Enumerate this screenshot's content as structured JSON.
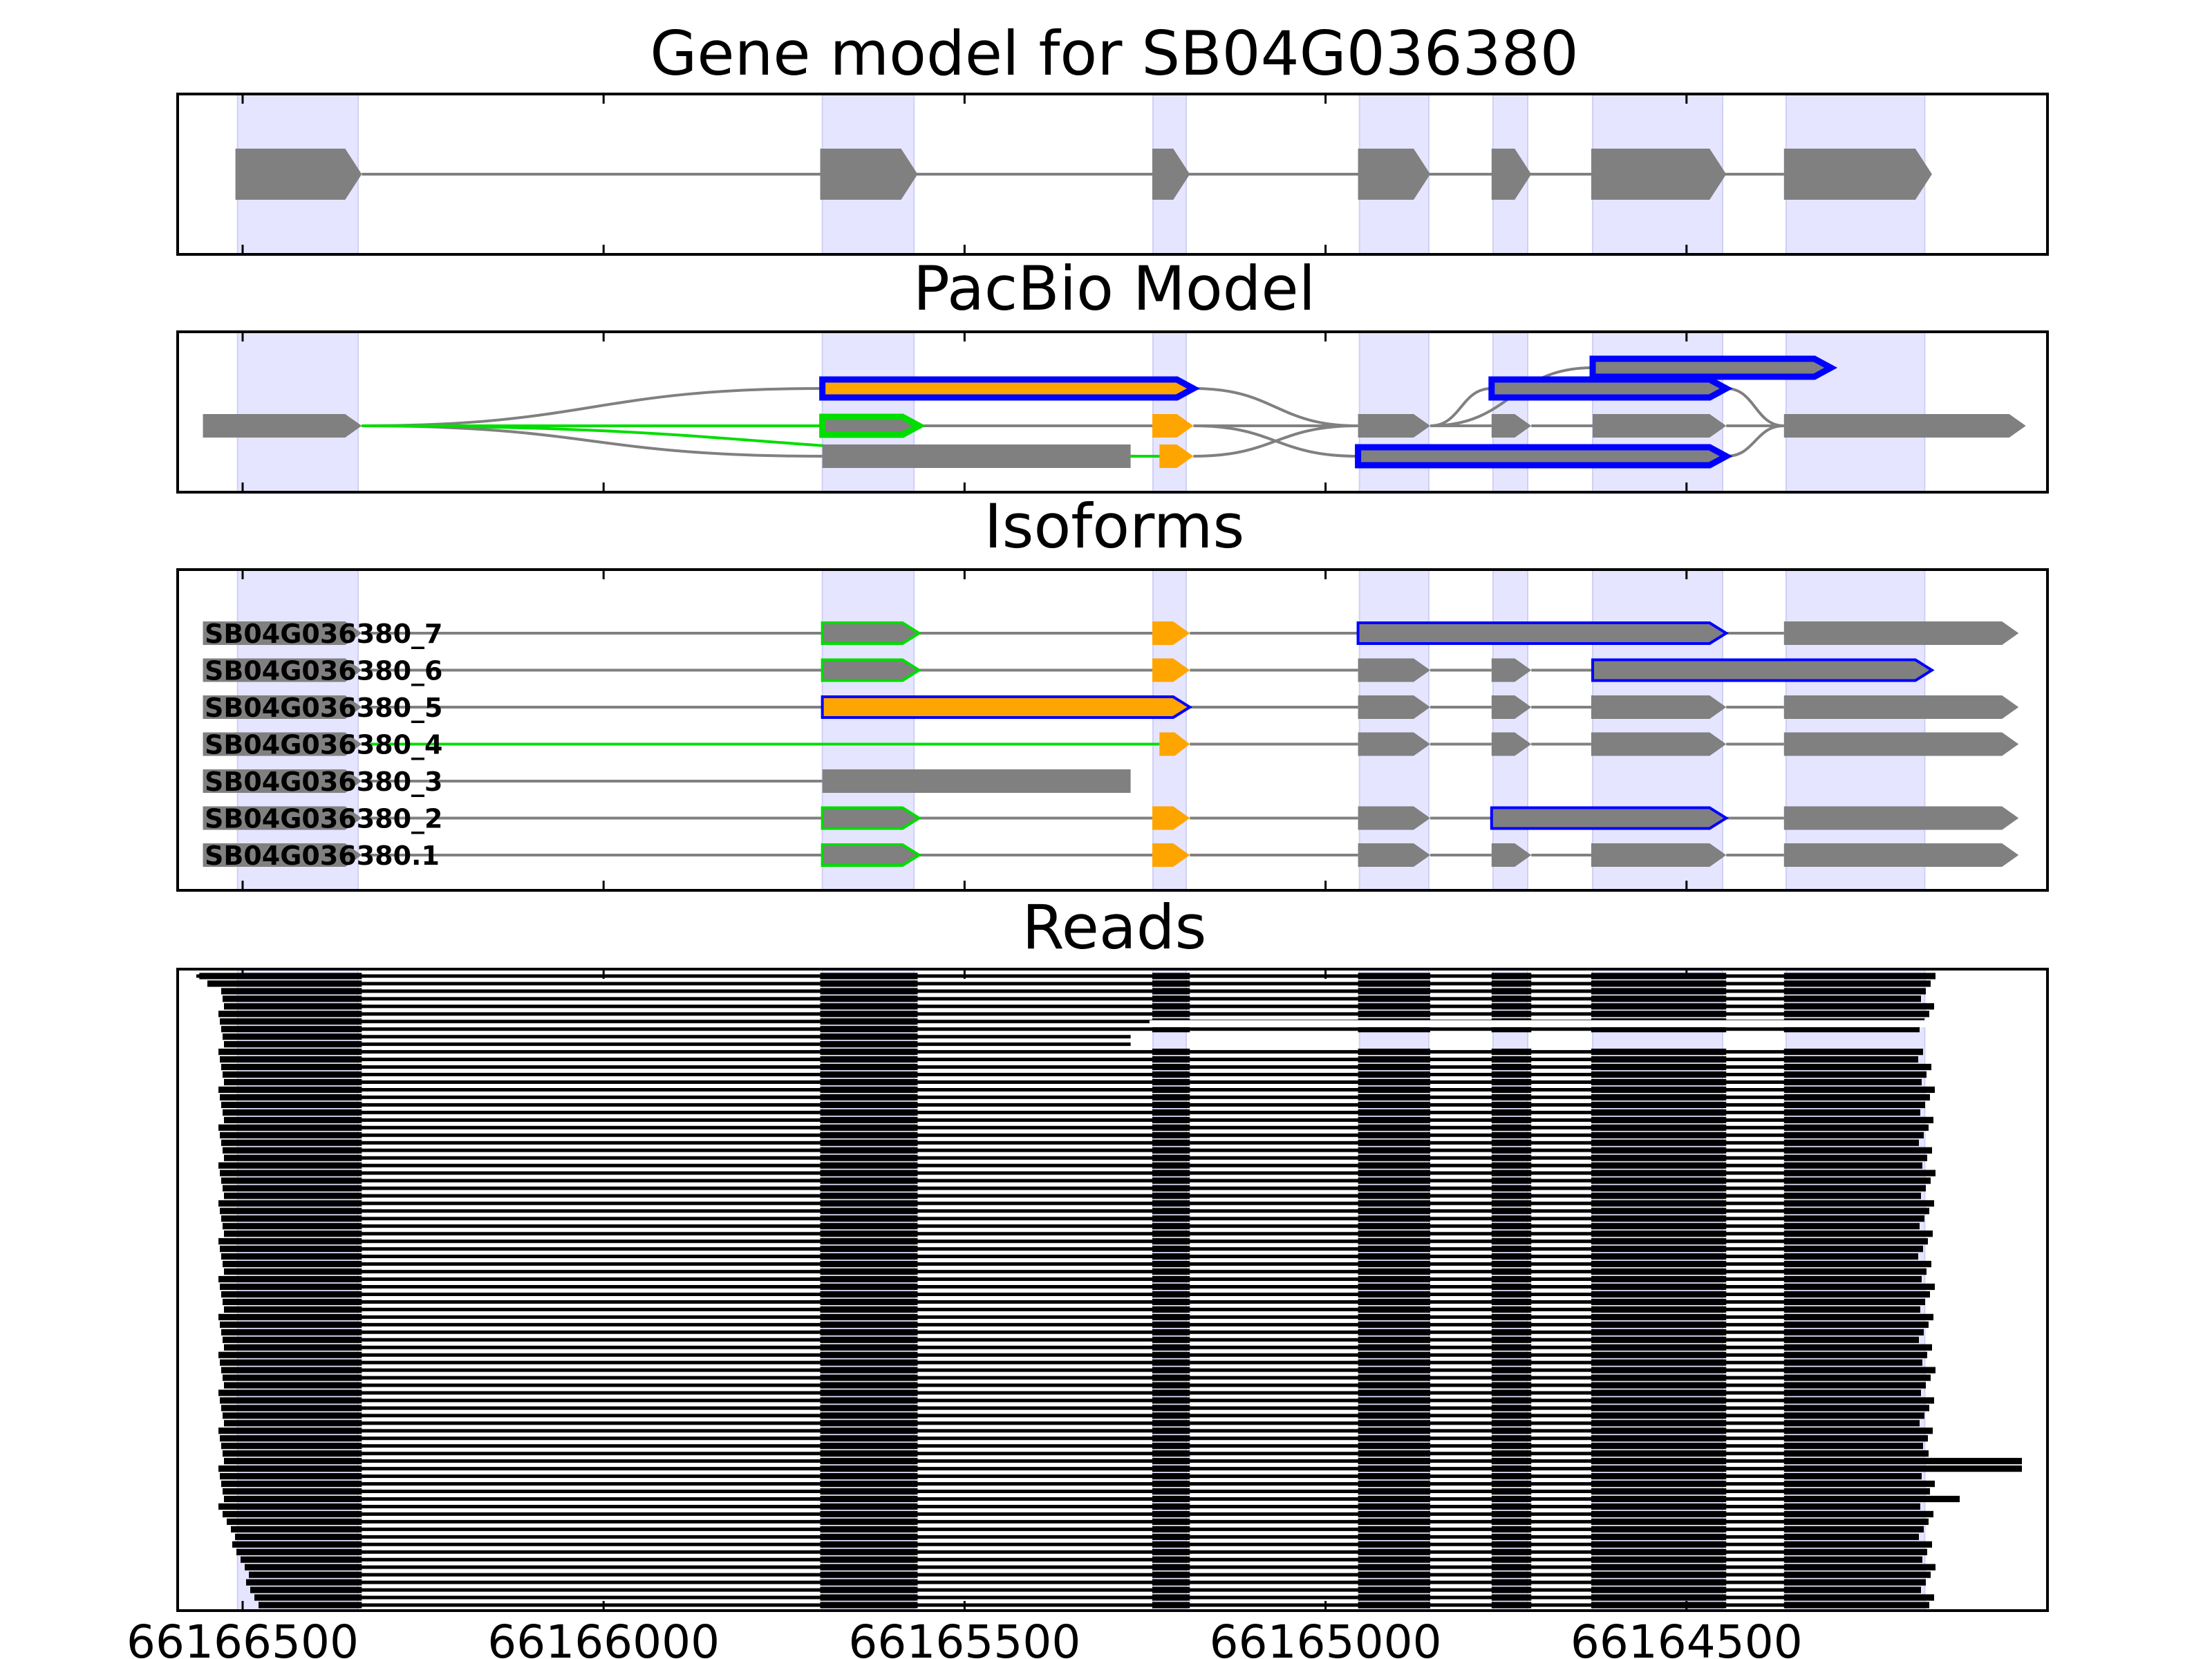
{
  "chart_data": {
    "type": "gene-structure",
    "xlim": [
      66166590,
      66164000
    ],
    "x_ticks": [
      "66166500",
      "66166000",
      "66165500",
      "66165000",
      "66164500"
    ],
    "exon_bands": [
      [
        66166507,
        66166340
      ],
      [
        66165697,
        66165570
      ],
      [
        66165239,
        66165193
      ],
      [
        66164953,
        66164857
      ],
      [
        66164768,
        66164720
      ],
      [
        66164630,
        66164450
      ],
      [
        66164362,
        66164170
      ]
    ],
    "panels": {
      "gene_model": {
        "title": "Gene model for SB04G036380",
        "exons": [
          [
            66166510,
            66166335
          ],
          [
            66165700,
            66165565
          ],
          [
            66165240,
            66165188
          ],
          [
            66164955,
            66164855
          ],
          [
            66164770,
            66164715
          ],
          [
            66164632,
            66164445
          ],
          [
            66164365,
            66164160
          ]
        ]
      },
      "pacbio": {
        "title": "PacBio Model",
        "nodes": [
          {
            "id": "a",
            "s": 66166555,
            "e": 66166335,
            "y": 2,
            "fill": "#808080",
            "stroke": "none"
          },
          {
            "id": "b",
            "s": 66165697,
            "e": 66165183,
            "y": 1,
            "fill": "#FFA500",
            "stroke": "#0000FF"
          },
          {
            "id": "c",
            "s": 66165697,
            "e": 66165563,
            "y": 2,
            "fill": "#808080",
            "stroke": "#00DD00"
          },
          {
            "id": "d",
            "s": 66165697,
            "e": 66165270,
            "y": 3,
            "fill": "#808080",
            "stroke": "none"
          },
          {
            "id": "e",
            "s": 66165240,
            "e": 66165183,
            "y": 2,
            "fill": "#FFA500",
            "stroke": "none"
          },
          {
            "id": "f",
            "s": 66165230,
            "e": 66165183,
            "y": 3,
            "fill": "#FFA500",
            "stroke": "none"
          },
          {
            "id": "g",
            "s": 66164955,
            "e": 66164855,
            "y": 2,
            "fill": "#808080",
            "stroke": "none"
          },
          {
            "id": "h",
            "s": 66164955,
            "e": 66164445,
            "y": 3,
            "fill": "#808080",
            "stroke": "#0000FF"
          },
          {
            "id": "i",
            "s": 66164770,
            "e": 66164445,
            "y": 1,
            "fill": "#808080",
            "stroke": "#0000FF"
          },
          {
            "id": "j",
            "s": 66164770,
            "e": 66164715,
            "y": 2,
            "fill": "#808080",
            "stroke": "none"
          },
          {
            "id": "k",
            "s": 66164630,
            "e": 66164300,
            "y": 0,
            "fill": "#808080",
            "stroke": "#0000FF"
          },
          {
            "id": "l",
            "s": 66164630,
            "e": 66164445,
            "y": 2,
            "fill": "#808080",
            "stroke": "none"
          },
          {
            "id": "m",
            "s": 66164365,
            "e": 66164030,
            "y": 2,
            "fill": "#808080",
            "stroke": "none"
          }
        ],
        "edges": [
          {
            "from": "a",
            "to": "b",
            "color": "#808080"
          },
          {
            "from": "a",
            "to": "c",
            "color": "#00DD00"
          },
          {
            "from": "a",
            "to": "d",
            "color": "#808080"
          },
          {
            "from": "a",
            "to": "f",
            "color": "#00DD00"
          },
          {
            "from": "c",
            "to": "e",
            "color": "#808080"
          },
          {
            "from": "d",
            "to": "f",
            "color": "#00DD00"
          },
          {
            "from": "b",
            "to": "g",
            "color": "#808080"
          },
          {
            "from": "e",
            "to": "g",
            "color": "#808080"
          },
          {
            "from": "e",
            "to": "h",
            "color": "#808080"
          },
          {
            "from": "f",
            "to": "g",
            "color": "#808080"
          },
          {
            "from": "g",
            "to": "i",
            "color": "#808080"
          },
          {
            "from": "g",
            "to": "j",
            "color": "#808080"
          },
          {
            "from": "g",
            "to": "k",
            "color": "#808080"
          },
          {
            "from": "j",
            "to": "l",
            "color": "#808080"
          },
          {
            "from": "l",
            "to": "m",
            "color": "#808080"
          },
          {
            "from": "i",
            "to": "m",
            "color": "#808080"
          },
          {
            "from": "h",
            "to": "m",
            "color": "#808080"
          }
        ]
      },
      "isoforms": {
        "title": "Isoforms",
        "rows": [
          {
            "name": "SB04G036380_7",
            "exons": [
              {
                "s": 66166555,
                "e": 66166335,
                "fill": "#808080",
                "stroke": "none"
              },
              {
                "s": 66165697,
                "e": 66165563,
                "fill": "#808080",
                "stroke": "#00DD00"
              },
              {
                "s": 66165240,
                "e": 66165188,
                "fill": "#FFA500",
                "stroke": "none"
              },
              {
                "s": 66164955,
                "e": 66164445,
                "fill": "#808080",
                "stroke": "#0000FF"
              },
              {
                "s": 66164365,
                "e": 66164040,
                "fill": "#808080",
                "stroke": "none"
              }
            ],
            "intron_color": "#808080"
          },
          {
            "name": "SB04G036380_6",
            "exons": [
              {
                "s": 66166555,
                "e": 66166335,
                "fill": "#808080",
                "stroke": "none"
              },
              {
                "s": 66165697,
                "e": 66165563,
                "fill": "#808080",
                "stroke": "#00DD00"
              },
              {
                "s": 66165240,
                "e": 66165188,
                "fill": "#FFA500",
                "stroke": "none"
              },
              {
                "s": 66164955,
                "e": 66164855,
                "fill": "#808080",
                "stroke": "none"
              },
              {
                "s": 66164770,
                "e": 66164715,
                "fill": "#808080",
                "stroke": "none"
              },
              {
                "s": 66164630,
                "e": 66164160,
                "fill": "#808080",
                "stroke": "#0000FF"
              }
            ],
            "intron_color": "#808080"
          },
          {
            "name": "SB04G036380_5",
            "exons": [
              {
                "s": 66166555,
                "e": 66166335,
                "fill": "#808080",
                "stroke": "none"
              },
              {
                "s": 66165697,
                "e": 66165188,
                "fill": "#FFA500",
                "stroke": "#0000FF"
              },
              {
                "s": 66164955,
                "e": 66164855,
                "fill": "#808080",
                "stroke": "none"
              },
              {
                "s": 66164770,
                "e": 66164715,
                "fill": "#808080",
                "stroke": "none"
              },
              {
                "s": 66164632,
                "e": 66164445,
                "fill": "#808080",
                "stroke": "none"
              },
              {
                "s": 66164365,
                "e": 66164040,
                "fill": "#808080",
                "stroke": "none"
              }
            ],
            "intron_color": "#808080"
          },
          {
            "name": "SB04G036380_4",
            "exons": [
              {
                "s": 66166555,
                "e": 66166335,
                "fill": "#808080",
                "stroke": "none"
              },
              {
                "s": 66165230,
                "e": 66165188,
                "fill": "#FFA500",
                "stroke": "none"
              },
              {
                "s": 66164955,
                "e": 66164855,
                "fill": "#808080",
                "stroke": "none"
              },
              {
                "s": 66164770,
                "e": 66164715,
                "fill": "#808080",
                "stroke": "none"
              },
              {
                "s": 66164632,
                "e": 66164445,
                "fill": "#808080",
                "stroke": "none"
              },
              {
                "s": 66164365,
                "e": 66164040,
                "fill": "#808080",
                "stroke": "none"
              }
            ],
            "intron_color": "#00DD00",
            "intron_color_after": "#808080"
          },
          {
            "name": "SB04G036380_3",
            "exons": [
              {
                "s": 66166555,
                "e": 66166335,
                "fill": "#808080",
                "stroke": "none"
              },
              {
                "s": 66165697,
                "e": 66165270,
                "fill": "#808080",
                "stroke": "none",
                "blunt": true
              }
            ],
            "intron_color": "#808080"
          },
          {
            "name": "SB04G036380_2",
            "exons": [
              {
                "s": 66166555,
                "e": 66166335,
                "fill": "#808080",
                "stroke": "none"
              },
              {
                "s": 66165697,
                "e": 66165563,
                "fill": "#808080",
                "stroke": "#00DD00"
              },
              {
                "s": 66165240,
                "e": 66165188,
                "fill": "#FFA500",
                "stroke": "none"
              },
              {
                "s": 66164955,
                "e": 66164855,
                "fill": "#808080",
                "stroke": "none"
              },
              {
                "s": 66164770,
                "e": 66164445,
                "fill": "#808080",
                "stroke": "#0000FF"
              },
              {
                "s": 66164365,
                "e": 66164040,
                "fill": "#808080",
                "stroke": "none"
              }
            ],
            "intron_color": "#808080"
          },
          {
            "name": "SB04G036380.1",
            "exons": [
              {
                "s": 66166555,
                "e": 66166335,
                "fill": "#808080",
                "stroke": "none"
              },
              {
                "s": 66165697,
                "e": 66165563,
                "fill": "#808080",
                "stroke": "#00DD00"
              },
              {
                "s": 66165240,
                "e": 66165188,
                "fill": "#FFA500",
                "stroke": "none"
              },
              {
                "s": 66164955,
                "e": 66164855,
                "fill": "#808080",
                "stroke": "none"
              },
              {
                "s": 66164770,
                "e": 66164715,
                "fill": "#808080",
                "stroke": "none"
              },
              {
                "s": 66164632,
                "e": 66164445,
                "fill": "#808080",
                "stroke": "none"
              },
              {
                "s": 66164365,
                "e": 66164040,
                "fill": "#808080",
                "stroke": "none"
              }
            ],
            "intron_color": "#808080"
          }
        ]
      },
      "reads": {
        "title": "Reads",
        "exon_blocks": [
          [
            66166560,
            66166335
          ],
          [
            66165700,
            66165565
          ],
          [
            66165240,
            66165188
          ],
          [
            66164955,
            66164855
          ],
          [
            66164770,
            66164715
          ],
          [
            66164632,
            66164445
          ],
          [
            66164365,
            66164160
          ]
        ],
        "read_count": 84
      }
    },
    "colors": {
      "gene": "#808080",
      "band": "#E5E5FF",
      "orange": "#FFA500",
      "green": "#00DD00",
      "blue": "#0000FF",
      "read": "#000000"
    }
  }
}
